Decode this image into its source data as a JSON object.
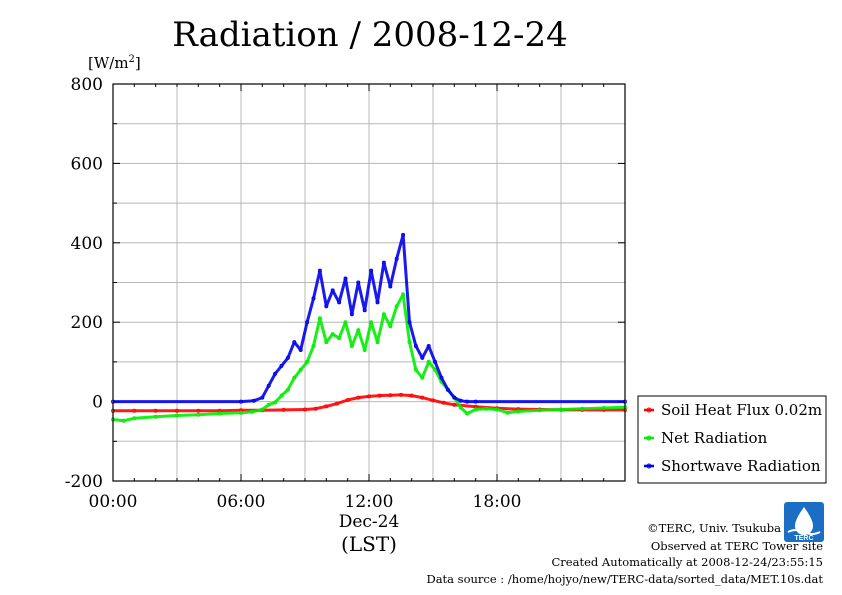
{
  "chart_data": {
    "type": "line",
    "title": "Radiation / 2008-12-24",
    "ylabel_unit": "[W/m",
    "ylabel_sup": "2",
    "ylabel_close": "]",
    "ylim": [
      -200,
      800
    ],
    "yticks": [
      -200,
      0,
      200,
      400,
      600,
      800
    ],
    "xlim": [
      0,
      24
    ],
    "xticks": [
      {
        "h": 0,
        "label": "00:00"
      },
      {
        "h": 6,
        "label": "06:00"
      },
      {
        "h": 12,
        "label": "12:00"
      },
      {
        "h": 18,
        "label": "18:00"
      }
    ],
    "xdate": "Dec-24",
    "xunit": "(LST)",
    "grid": true,
    "legend_position": "right",
    "series": [
      {
        "name": "Soil Heat Flux 0.02m",
        "color": "#ff0000",
        "x": [
          0,
          1,
          2,
          3,
          4,
          5,
          6,
          7,
          8,
          9,
          9.5,
          10,
          10.5,
          11,
          11.5,
          12,
          12.5,
          13,
          13.5,
          14,
          14.5,
          15,
          15.5,
          16,
          17,
          18,
          19,
          20,
          21,
          22,
          23,
          24
        ],
        "values": [
          -23,
          -23,
          -23,
          -23,
          -23,
          -23,
          -22,
          -22,
          -21,
          -20,
          -18,
          -12,
          -5,
          4,
          10,
          13,
          15,
          16,
          17,
          15,
          10,
          3,
          -3,
          -8,
          -13,
          -17,
          -19,
          -20,
          -21,
          -21,
          -21,
          -21
        ]
      },
      {
        "name": "Net Radiation",
        "color": "#00ee00",
        "x": [
          0,
          0.5,
          1,
          2,
          3,
          4,
          5,
          6,
          6.5,
          7,
          7.3,
          7.6,
          7.9,
          8.2,
          8.5,
          8.8,
          9.1,
          9.4,
          9.7,
          10,
          10.3,
          10.6,
          10.9,
          11.2,
          11.5,
          11.8,
          12.1,
          12.4,
          12.7,
          13,
          13.3,
          13.6,
          13.9,
          14.2,
          14.5,
          14.8,
          15.1,
          15.4,
          15.7,
          16,
          16.3,
          16.6,
          17,
          17.5,
          18,
          18.5,
          19,
          20,
          21,
          22,
          23,
          24
        ],
        "values": [
          -45,
          -48,
          -42,
          -38,
          -35,
          -33,
          -30,
          -28,
          -26,
          -20,
          -8,
          -2,
          15,
          30,
          60,
          80,
          100,
          140,
          210,
          150,
          170,
          160,
          200,
          140,
          180,
          130,
          200,
          150,
          220,
          190,
          240,
          270,
          150,
          80,
          60,
          100,
          80,
          50,
          30,
          10,
          -15,
          -30,
          -20,
          -18,
          -20,
          -28,
          -25,
          -22,
          -20,
          -18,
          -16,
          -14
        ]
      },
      {
        "name": "Shortwave Radiation",
        "color": "#0000ee",
        "x": [
          0,
          6,
          6.6,
          7,
          7.3,
          7.6,
          7.9,
          8.2,
          8.5,
          8.8,
          9.1,
          9.4,
          9.7,
          10,
          10.3,
          10.6,
          10.9,
          11.2,
          11.5,
          11.8,
          12.1,
          12.4,
          12.7,
          13,
          13.3,
          13.6,
          13.9,
          14.2,
          14.5,
          14.8,
          15.1,
          15.4,
          15.7,
          16,
          16.3,
          16.6,
          17,
          24
        ],
        "values": [
          0,
          0,
          2,
          10,
          40,
          70,
          90,
          110,
          150,
          130,
          200,
          260,
          330,
          240,
          280,
          250,
          310,
          220,
          300,
          230,
          330,
          250,
          350,
          290,
          360,
          420,
          200,
          140,
          110,
          140,
          100,
          60,
          30,
          10,
          2,
          0,
          0,
          0
        ]
      }
    ]
  },
  "credits": {
    "copyright": "©TERC, Univ. Tsukuba",
    "site": "Observed at TERC Tower site",
    "created": "Created Automatically at 2008-12-24/23:55:15",
    "source": "Data source : /home/hojyo/new/TERC-data/sorted_data/MET.10s.dat"
  },
  "logo": {
    "text": "TERC",
    "color": "#1a6fc4"
  }
}
